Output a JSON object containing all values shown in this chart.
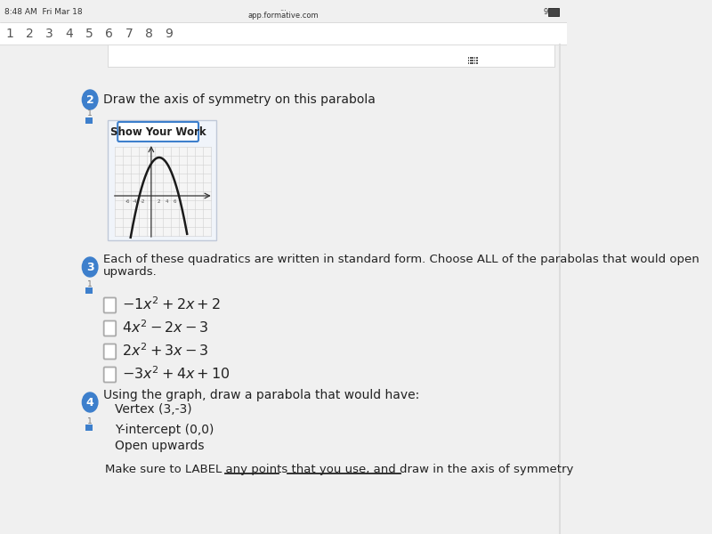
{
  "bg_color": "#f0f0f0",
  "white": "#ffffff",
  "status_bar_bg": "#f0f0f0",
  "status_bar_text": "8:48 AM  Fri Mar 18",
  "status_bar_url": "app.formative.com",
  "status_bar_dots": "...",
  "tab_numbers": [
    "1",
    "2",
    "3",
    "4",
    "5",
    "6",
    "7",
    "8",
    "9"
  ],
  "q2_number": "2",
  "q2_circle_color": "#3d7fcc",
  "q2_text": "Draw the axis of symmetry on this parabola",
  "q3_number": "3",
  "q3_circle_color": "#3d7fcc",
  "q3_line1": "Each of these quadratics are written in standard form. Choose ALL of the parabolas that would open",
  "q3_line2": "upwards.",
  "q3_options_latex": [
    "$-1x^2 + 2x + 2$",
    "$4x^2 - 2x - 3$",
    "$2x^2 + 3x - 3$",
    "$-3x^2 + 4x + 10$"
  ],
  "q4_number": "4",
  "q4_circle_color": "#3d7fcc",
  "q4_text": "Using the graph, draw a parabola that would have:",
  "q4_bullet1": "Vertex (3,-3)",
  "q4_bullet2": "Y-intercept (0,0)",
  "q4_bullet3": "Open upwards",
  "q4_note": "Make sure to LABEL any points that you use, and draw in the axis of symmetry",
  "text_color": "#222222",
  "light_blue_icon": "#3d7fcc",
  "graph_border_color": "#b0b8c8",
  "show_work_border": "#3d7fcc",
  "right_border_color": "#cccccc"
}
